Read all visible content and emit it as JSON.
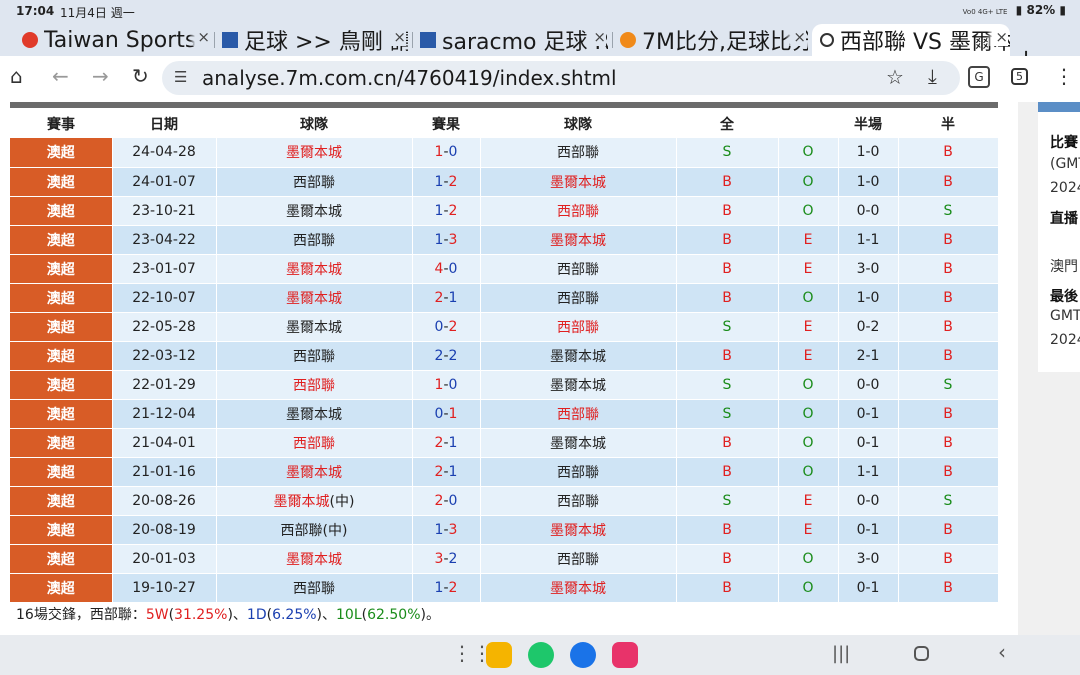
{
  "status": {
    "time": "17:04",
    "date": "11月4日 週一",
    "netinfo": "Vo0 4G+ LTE",
    "battery": "82%"
  },
  "tabs": [
    {
      "title": "Taiwan Sports",
      "fav": "#e03a2a",
      "x": "×"
    },
    {
      "title": "足球 >> 鳥剛 請",
      "fav": "#2a5aa8",
      "x": "×"
    },
    {
      "title": "saracmo 足球 R",
      "fav": "#2a5aa8",
      "x": "×"
    },
    {
      "title": "7M比分,足球比分",
      "fav": "#f08a1a",
      "x": "×"
    },
    {
      "title": "西部聯 VS 墨爾本",
      "fav": "#333333",
      "x": "×"
    }
  ],
  "newtab_label": "+",
  "toolbar": {
    "url": "analyse.7m.com.cn/4760419/index.shtml",
    "tab_count": "5"
  },
  "table": {
    "headers": [
      "賽事",
      "日期",
      "球隊",
      "賽果",
      "球隊",
      "全",
      "",
      "半場",
      "半"
    ],
    "rows": [
      {
        "league": "澳超",
        "date": "24-04-28",
        "home": "墨爾本城",
        "home_red": true,
        "hs": "1",
        "as": "0",
        "hs_red": true,
        "as_red": false,
        "away": "西部聯",
        "away_red": false,
        "res": "S",
        "ou": "O",
        "half": "1-0",
        "hres": "B"
      },
      {
        "league": "澳超",
        "date": "24-01-07",
        "home": "西部聯",
        "home_red": false,
        "hs": "1",
        "as": "2",
        "hs_red": false,
        "as_red": true,
        "away": "墨爾本城",
        "away_red": true,
        "res": "B",
        "ou": "O",
        "half": "1-0",
        "hres": "B"
      },
      {
        "league": "澳超",
        "date": "23-10-21",
        "home": "墨爾本城",
        "home_red": false,
        "hs": "1",
        "as": "2",
        "hs_red": false,
        "as_red": true,
        "away": "西部聯",
        "away_red": true,
        "res": "B",
        "ou": "O",
        "half": "0-0",
        "hres": "S"
      },
      {
        "league": "澳超",
        "date": "23-04-22",
        "home": "西部聯",
        "home_red": false,
        "hs": "1",
        "as": "3",
        "hs_red": false,
        "as_red": true,
        "away": "墨爾本城",
        "away_red": true,
        "res": "B",
        "ou": "E",
        "half": "1-1",
        "hres": "B"
      },
      {
        "league": "澳超",
        "date": "23-01-07",
        "home": "墨爾本城",
        "home_red": true,
        "hs": "4",
        "as": "0",
        "hs_red": true,
        "as_red": false,
        "away": "西部聯",
        "away_red": false,
        "res": "B",
        "ou": "E",
        "half": "3-0",
        "hres": "B"
      },
      {
        "league": "澳超",
        "date": "22-10-07",
        "home": "墨爾本城",
        "home_red": true,
        "hs": "2",
        "as": "1",
        "hs_red": true,
        "as_red": false,
        "away": "西部聯",
        "away_red": false,
        "res": "B",
        "ou": "O",
        "half": "1-0",
        "hres": "B"
      },
      {
        "league": "澳超",
        "date": "22-05-28",
        "home": "墨爾本城",
        "home_red": false,
        "hs": "0",
        "as": "2",
        "hs_red": false,
        "as_red": true,
        "away": "西部聯",
        "away_red": true,
        "res": "S",
        "ou": "E",
        "half": "0-2",
        "hres": "B"
      },
      {
        "league": "澳超",
        "date": "22-03-12",
        "home": "西部聯",
        "home_red": false,
        "hs": "2",
        "as": "2",
        "hs_red": false,
        "as_red": false,
        "away": "墨爾本城",
        "away_red": false,
        "res": "B",
        "ou": "E",
        "half": "2-1",
        "hres": "B"
      },
      {
        "league": "澳超",
        "date": "22-01-29",
        "home": "西部聯",
        "home_red": true,
        "hs": "1",
        "as": "0",
        "hs_red": true,
        "as_red": false,
        "away": "墨爾本城",
        "away_red": false,
        "res": "S",
        "ou": "O",
        "half": "0-0",
        "hres": "S"
      },
      {
        "league": "澳超",
        "date": "21-12-04",
        "home": "墨爾本城",
        "home_red": false,
        "hs": "0",
        "as": "1",
        "hs_red": false,
        "as_red": true,
        "away": "西部聯",
        "away_red": true,
        "res": "S",
        "ou": "O",
        "half": "0-1",
        "hres": "B"
      },
      {
        "league": "澳超",
        "date": "21-04-01",
        "home": "西部聯",
        "home_red": true,
        "hs": "2",
        "as": "1",
        "hs_red": true,
        "as_red": false,
        "away": "墨爾本城",
        "away_red": false,
        "res": "B",
        "ou": "O",
        "half": "0-1",
        "hres": "B"
      },
      {
        "league": "澳超",
        "date": "21-01-16",
        "home": "墨爾本城",
        "home_red": true,
        "hs": "2",
        "as": "1",
        "hs_red": true,
        "as_red": false,
        "away": "西部聯",
        "away_red": false,
        "res": "B",
        "ou": "O",
        "half": "1-1",
        "hres": "B"
      },
      {
        "league": "澳超",
        "date": "20-08-26",
        "home": "墨爾本城",
        "home_red": true,
        "home_suffix": "(中)",
        "hs": "2",
        "as": "0",
        "hs_red": true,
        "as_red": false,
        "away": "西部聯",
        "away_red": false,
        "res": "S",
        "ou": "E",
        "half": "0-0",
        "hres": "S"
      },
      {
        "league": "澳超",
        "date": "20-08-19",
        "home": "西部聯",
        "home_red": false,
        "home_suffix": "(中)",
        "hs": "1",
        "as": "3",
        "hs_red": false,
        "as_red": true,
        "away": "墨爾本城",
        "away_red": true,
        "res": "B",
        "ou": "E",
        "half": "0-1",
        "hres": "B"
      },
      {
        "league": "澳超",
        "date": "20-01-03",
        "home": "墨爾本城",
        "home_red": true,
        "hs": "3",
        "as": "2",
        "hs_red": true,
        "as_red": false,
        "away": "西部聯",
        "away_red": false,
        "res": "B",
        "ou": "O",
        "half": "3-0",
        "hres": "B"
      },
      {
        "league": "澳超",
        "date": "19-10-27",
        "home": "西部聯",
        "home_red": false,
        "hs": "1",
        "as": "2",
        "hs_red": false,
        "as_red": true,
        "away": "墨爾本城",
        "away_red": true,
        "res": "B",
        "ou": "O",
        "half": "0-1",
        "hres": "B"
      }
    ]
  },
  "summary": {
    "prefix": "16場交鋒，西部聯：",
    "w": "5W",
    "w_pct": "31.25%",
    "d": "1D",
    "d_pct": "6.25%",
    "l": "10L",
    "l_pct": "62.50%",
    "sep": "、",
    "end": "。"
  },
  "side": [
    {
      "text": "比賽",
      "bold": true
    },
    {
      "text": "(GMT",
      "bold": false
    },
    {
      "text": "2024",
      "bold": false
    },
    {
      "text": "直播",
      "bold": true
    },
    {
      "text": "澳門",
      "bold": false
    },
    {
      "text": "最後",
      "bold": true
    },
    {
      "text": "GMT",
      "bold": false
    },
    {
      "text": "2024",
      "bold": false
    }
  ],
  "colors": {
    "league_bg": "#d85c26",
    "row_light": "#e6f1fa",
    "row_dark": "#cfe4f5",
    "red": "#e02020",
    "green": "#1a8c1a",
    "blue": "#1a3fb0"
  },
  "icons": [
    "home-icon",
    "back-icon",
    "forward-icon",
    "reload-icon",
    "tune-icon",
    "star-icon",
    "download-icon",
    "translate-icon",
    "tab-switcher-icon",
    "menu-icon",
    "apps-grid-icon",
    "files-app-icon",
    "phone-app-icon",
    "chat-app-icon",
    "screen-recorder-icon",
    "recents-icon",
    "nav-home-icon",
    "nav-back-icon"
  ]
}
